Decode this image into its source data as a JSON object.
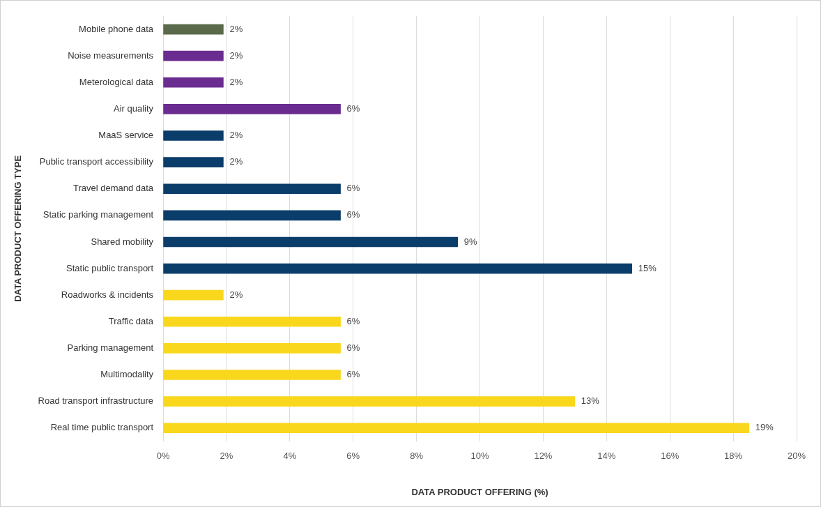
{
  "chart_data": {
    "type": "bar",
    "orientation": "horizontal",
    "xlabel": "DATA PRODUCT OFFERING (%)",
    "ylabel": "DATA PRODUCT OFFERING TYPE",
    "categories": [
      "Mobile phone data",
      "Noise measurements",
      "Meterological data",
      "Air quality",
      "MaaS service",
      "Public transport accessibility",
      "Travel demand data",
      "Static parking management",
      "Shared mobility",
      "Static public transport",
      "Roadworks & incidents",
      "Traffic data",
      "Parking management",
      "Multimodality",
      "Road transport infrastructure",
      "Real time public transport"
    ],
    "values": [
      1.9,
      1.9,
      1.9,
      5.6,
      1.9,
      1.9,
      5.6,
      5.6,
      9.3,
      14.8,
      1.9,
      5.6,
      5.6,
      5.6,
      13.0,
      18.5
    ],
    "value_labels": [
      "2%",
      "2%",
      "2%",
      "6%",
      "2%",
      "2%",
      "6%",
      "6%",
      "9%",
      "15%",
      "2%",
      "6%",
      "6%",
      "6%",
      "13%",
      "19%"
    ],
    "colors": [
      "#5a6a4a",
      "#6b2c91",
      "#6b2c91",
      "#6b2c91",
      "#0b3d6b",
      "#0b3d6b",
      "#0b3d6b",
      "#0b3d6b",
      "#0b3d6b",
      "#0b3d6b",
      "#f9d71c",
      "#f9d71c",
      "#f9d71c",
      "#f9d71c",
      "#f9d71c",
      "#f9d71c"
    ],
    "xlim": [
      0,
      20
    ],
    "xticks": [
      {
        "value": 0,
        "label": "0%"
      },
      {
        "value": 2,
        "label": "2%"
      },
      {
        "value": 4,
        "label": "4%"
      },
      {
        "value": 6,
        "label": "6%"
      },
      {
        "value": 8,
        "label": "8%"
      },
      {
        "value": 10,
        "label": "10%"
      },
      {
        "value": 12,
        "label": "12%"
      },
      {
        "value": 14,
        "label": "14%"
      },
      {
        "value": 16,
        "label": "16%"
      },
      {
        "value": 18,
        "label": "18%"
      },
      {
        "value": 20,
        "label": "20%"
      }
    ],
    "grid": "x",
    "legend": false
  }
}
